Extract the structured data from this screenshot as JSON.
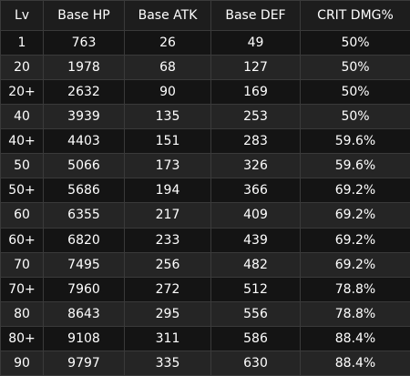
{
  "table": {
    "headers": [
      "Lv",
      "Base HP",
      "Base ATK",
      "Base DEF",
      "CRIT DMG%"
    ],
    "rows": [
      [
        "1",
        "763",
        "26",
        "49",
        "50%"
      ],
      [
        "20",
        "1978",
        "68",
        "127",
        "50%"
      ],
      [
        "20+",
        "2632",
        "90",
        "169",
        "50%"
      ],
      [
        "40",
        "3939",
        "135",
        "253",
        "50%"
      ],
      [
        "40+",
        "4403",
        "151",
        "283",
        "59.6%"
      ],
      [
        "50",
        "5066",
        "173",
        "326",
        "59.6%"
      ],
      [
        "50+",
        "5686",
        "194",
        "366",
        "69.2%"
      ],
      [
        "60",
        "6355",
        "217",
        "409",
        "69.2%"
      ],
      [
        "60+",
        "6820",
        "233",
        "439",
        "69.2%"
      ],
      [
        "70",
        "7495",
        "256",
        "482",
        "69.2%"
      ],
      [
        "70+",
        "7960",
        "272",
        "512",
        "78.8%"
      ],
      [
        "80",
        "8643",
        "295",
        "556",
        "78.8%"
      ],
      [
        "80+",
        "9108",
        "311",
        "586",
        "88.4%"
      ],
      [
        "90",
        "9797",
        "335",
        "630",
        "88.4%"
      ]
    ]
  },
  "colors": {
    "background": "#1e1e1e",
    "row_dark": "#141414",
    "row_light": "#252525",
    "border": "#3a3a3a",
    "text": "#ffffff"
  }
}
